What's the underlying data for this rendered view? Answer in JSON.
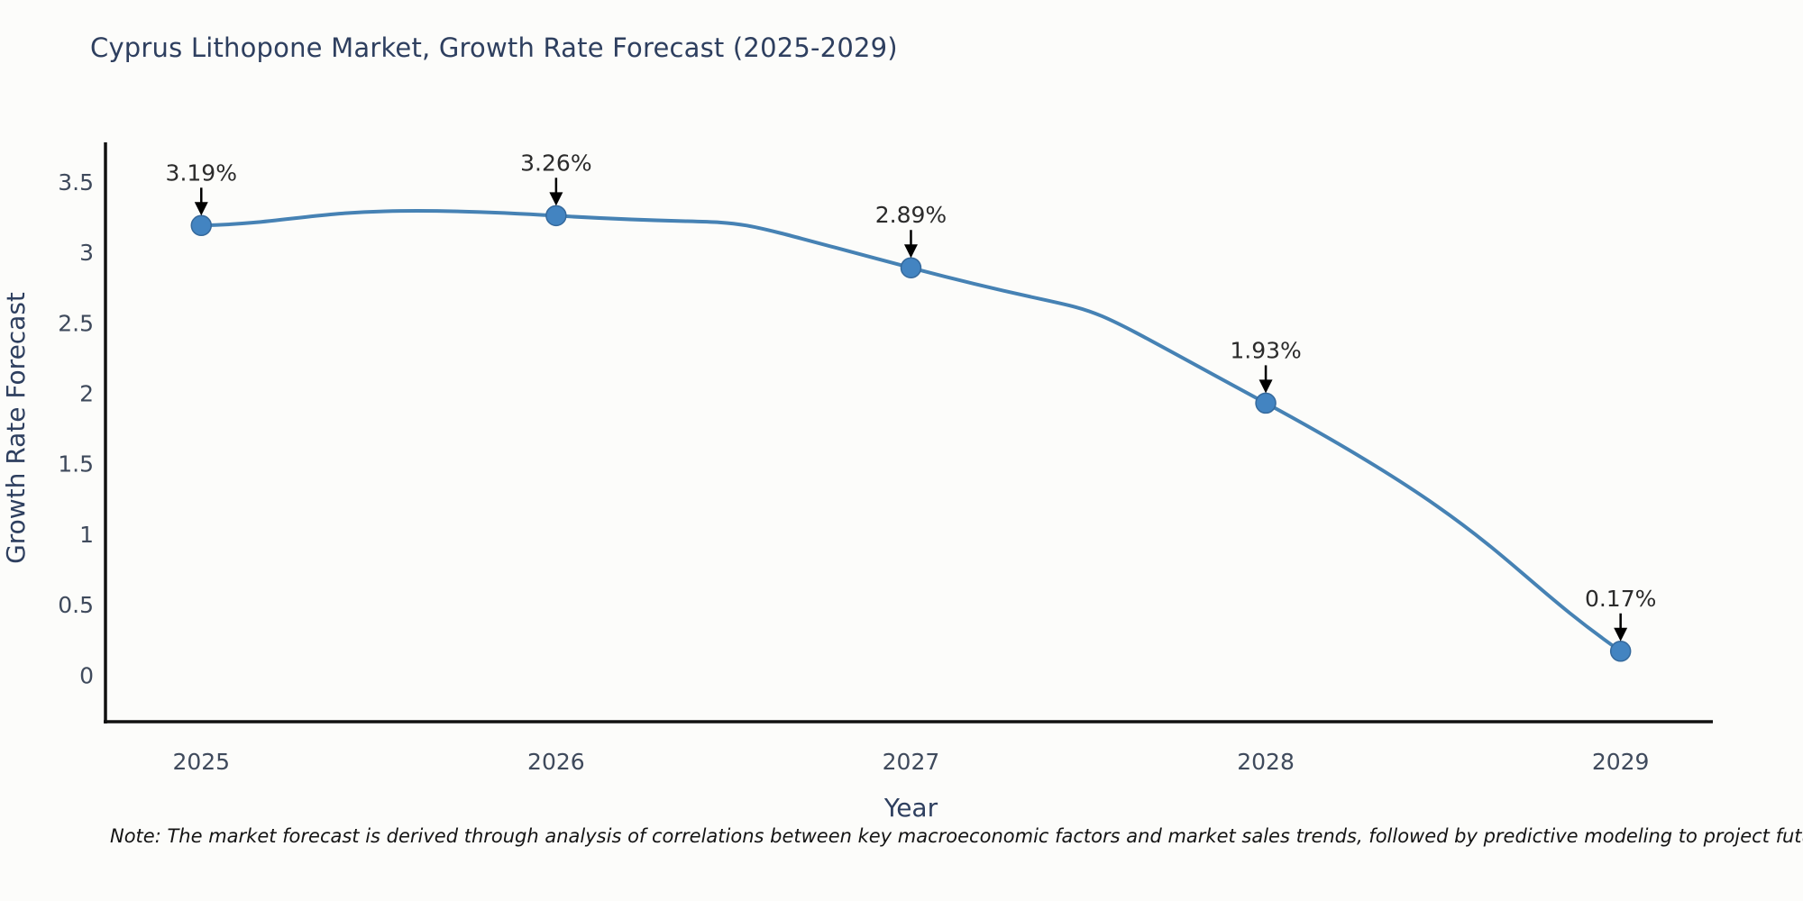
{
  "page": {
    "background": "#fcfcfa"
  },
  "chart_data": {
    "type": "line",
    "title": "Cyprus Lithopone Market, Growth Rate Forecast (2025-2029)",
    "xlabel": "Year",
    "ylabel": "Growth Rate Forecast",
    "x": [
      2025,
      2026,
      2027,
      2028,
      2029
    ],
    "x_tick_labels": [
      "2025",
      "2026",
      "2027",
      "2028",
      "2029"
    ],
    "values": [
      3.19,
      3.26,
      2.89,
      1.93,
      0.17
    ],
    "point_labels": [
      "3.19%",
      "3.26%",
      "2.89%",
      "1.93%",
      "0.17%"
    ],
    "y_ticks": [
      0,
      0.5,
      1,
      1.5,
      2,
      2.5,
      3,
      3.5
    ],
    "y_tick_labels": [
      "0",
      "0.5",
      "1",
      "1.5",
      "2",
      "2.5",
      "3",
      "3.5"
    ],
    "xlim": [
      2024.73,
      2029.26
    ],
    "ylim": [
      -0.33,
      3.78
    ],
    "grid": false,
    "legend": false,
    "annotation_style": "value label above point with downward black arrow",
    "colors": {
      "line": "#4682b4",
      "marker_fill": "#4384c1",
      "marker_edge": "#35699c",
      "axis": "#111111",
      "title": "#2e3f5f",
      "axis_label": "#2e3f5f",
      "tick_label": "#3f4a5c",
      "annotation_text": "#2b2b2b",
      "arrow": "#000000"
    }
  },
  "note": {
    "text": "Note: The market forecast is derived through analysis of correlations between key macroeconomic factors and market sales trends, followed by predictive modeling to project future sales"
  }
}
